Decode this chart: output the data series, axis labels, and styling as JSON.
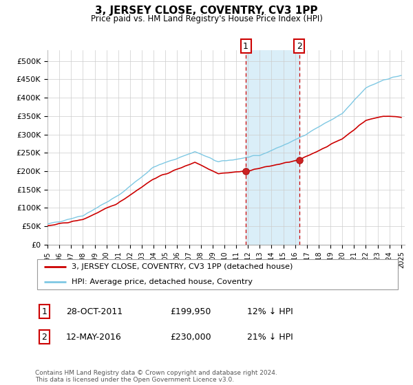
{
  "title": "3, JERSEY CLOSE, COVENTRY, CV3 1PP",
  "subtitle": "Price paid vs. HM Land Registry's House Price Index (HPI)",
  "ylim": [
    0,
    530000
  ],
  "yticks": [
    0,
    50000,
    100000,
    150000,
    200000,
    250000,
    300000,
    350000,
    400000,
    450000,
    500000
  ],
  "ytick_labels": [
    "£0",
    "£50K",
    "£100K",
    "£150K",
    "£200K",
    "£250K",
    "£300K",
    "£350K",
    "£400K",
    "£450K",
    "£500K"
  ],
  "x_start_year": 1995,
  "x_end_year": 2025,
  "sale1_date": 2011.82,
  "sale1_price": 199950,
  "sale1_label": "1",
  "sale2_date": 2016.36,
  "sale2_price": 230000,
  "sale2_label": "2",
  "hpi_color": "#7ec8e3",
  "sale_color": "#cc0000",
  "shade_color": "#daeef8",
  "vline_color": "#cc0000",
  "grid_color": "#cccccc",
  "legend_label_sale": "3, JERSEY CLOSE, COVENTRY, CV3 1PP (detached house)",
  "legend_label_hpi": "HPI: Average price, detached house, Coventry",
  "footnote": "Contains HM Land Registry data © Crown copyright and database right 2024.\nThis data is licensed under the Open Government Licence v3.0.",
  "table_rows": [
    [
      "1",
      "28-OCT-2011",
      "£199,950",
      "12% ↓ HPI"
    ],
    [
      "2",
      "12-MAY-2016",
      "£230,000",
      "21% ↓ HPI"
    ]
  ]
}
